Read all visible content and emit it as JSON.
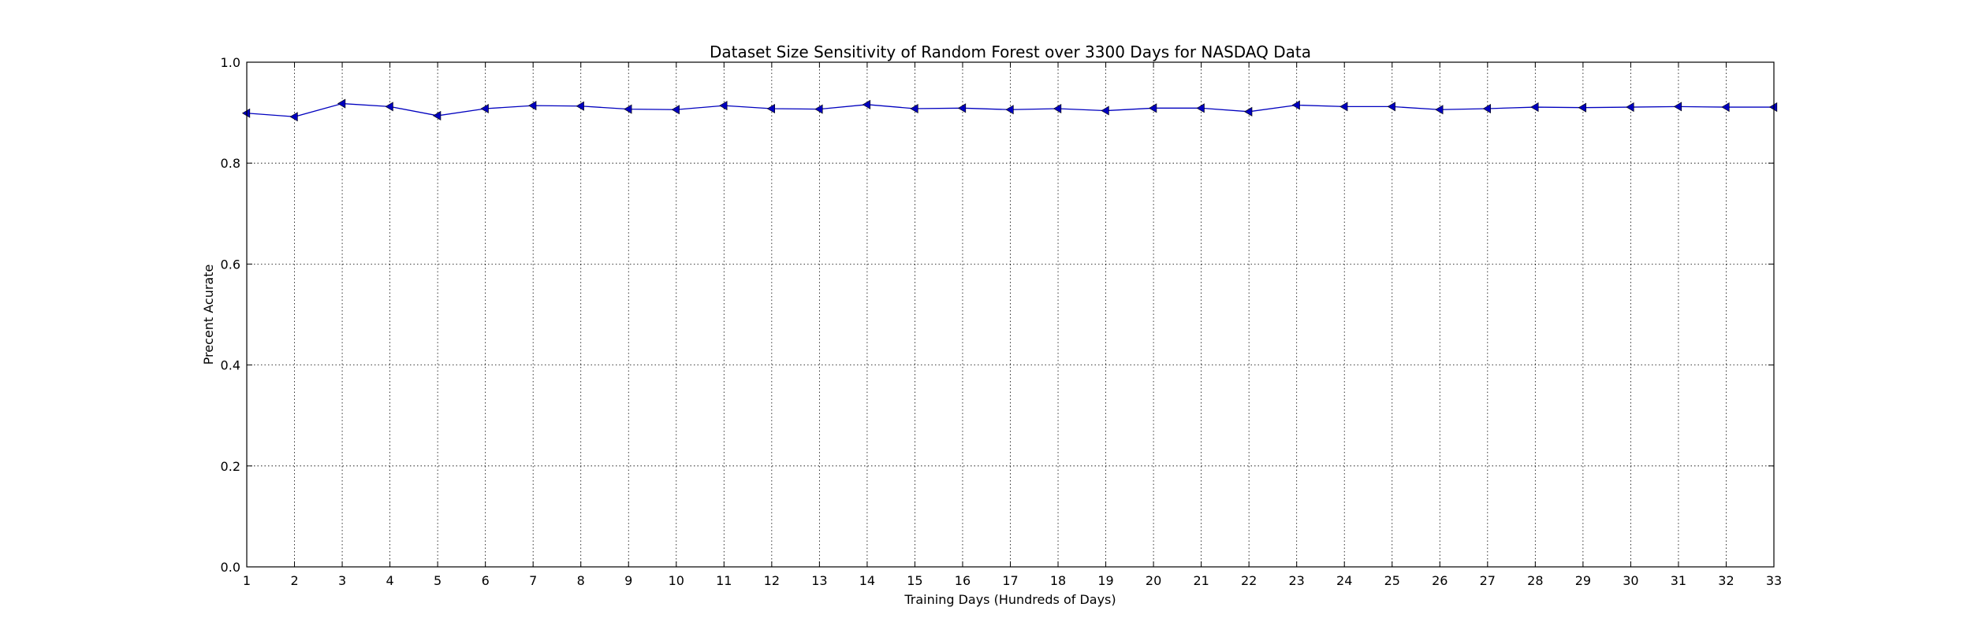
{
  "chart_data": {
    "type": "line",
    "title": "Dataset Size Sensitivity of Random Forest over 3300 Days for NASDAQ Data",
    "xlabel": "Training Days (Hundreds of Days)",
    "ylabel": "Precent Acurate",
    "xlim": [
      1,
      33
    ],
    "ylim": [
      0.0,
      1.0
    ],
    "x_ticks": [
      1,
      2,
      3,
      4,
      5,
      6,
      7,
      8,
      9,
      10,
      11,
      12,
      13,
      14,
      15,
      16,
      17,
      18,
      19,
      20,
      21,
      22,
      23,
      24,
      25,
      26,
      27,
      28,
      29,
      30,
      31,
      32,
      33
    ],
    "y_ticks": [
      0.0,
      0.2,
      0.4,
      0.6,
      0.8,
      1.0
    ],
    "y_tick_labels": [
      "0.0",
      "0.2",
      "0.4",
      "0.6",
      "0.8",
      "1.0"
    ],
    "grid": true,
    "series": [
      {
        "color": "#0000bf",
        "marker": "triangle-left",
        "x": [
          1,
          2,
          3,
          4,
          5,
          6,
          7,
          8,
          9,
          10,
          11,
          12,
          13,
          14,
          15,
          16,
          17,
          18,
          19,
          20,
          21,
          22,
          23,
          24,
          25,
          26,
          27,
          28,
          29,
          30,
          31,
          32,
          33
        ],
        "values": [
          0.899,
          0.892,
          0.918,
          0.912,
          0.894,
          0.908,
          0.914,
          0.913,
          0.907,
          0.906,
          0.914,
          0.908,
          0.907,
          0.916,
          0.908,
          0.909,
          0.906,
          0.908,
          0.904,
          0.909,
          0.909,
          0.902,
          0.915,
          0.912,
          0.912,
          0.906,
          0.908,
          0.911,
          0.91,
          0.911,
          0.912,
          0.911,
          0.911
        ]
      }
    ]
  }
}
